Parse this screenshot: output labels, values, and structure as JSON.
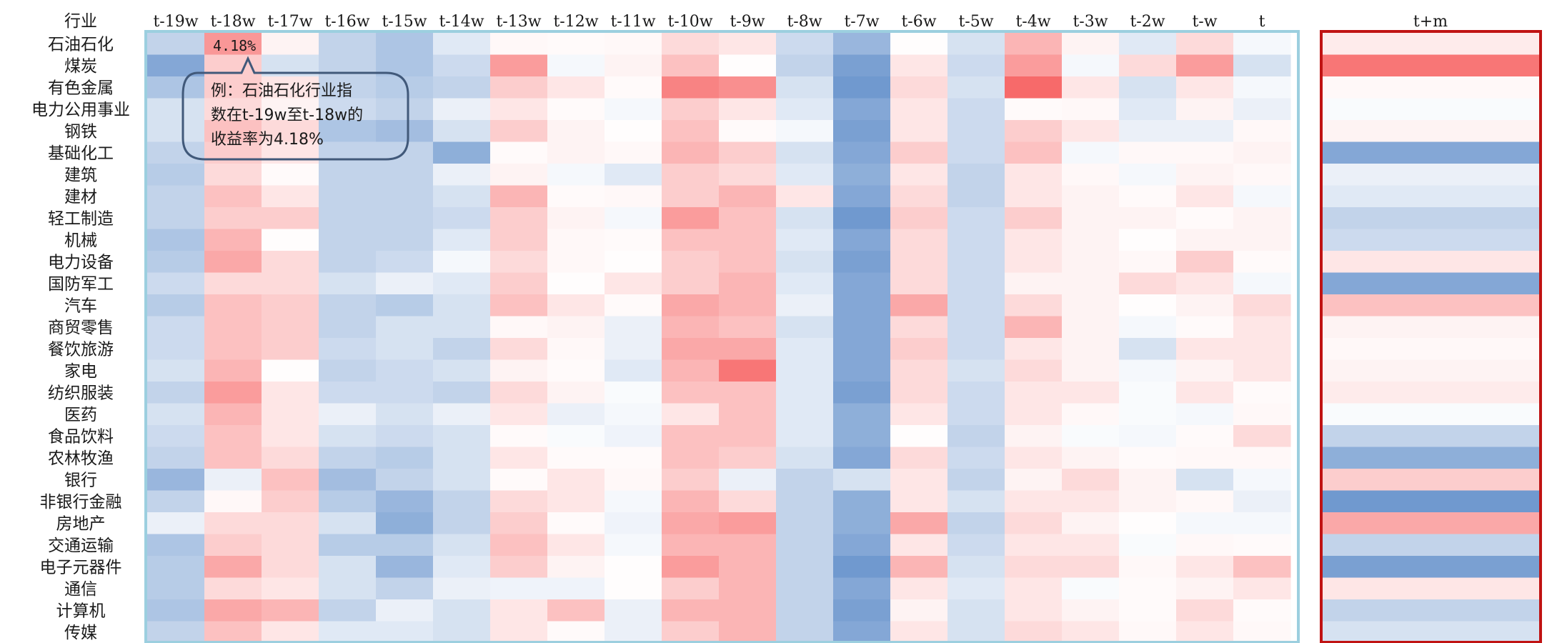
{
  "chart_data": {
    "type": "heatmap",
    "title": "",
    "row_header": "行业",
    "columns": [
      "t-19w",
      "t-18w",
      "t-17w",
      "t-16w",
      "t-15w",
      "t-14w",
      "t-13w",
      "t-12w",
      "t-11w",
      "t-10w",
      "t-9w",
      "t-8w",
      "t-7w",
      "t-6w",
      "t-5w",
      "t-4w",
      "t-3w",
      "t-2w",
      "t-w",
      "t"
    ],
    "forecast_column": "t+m",
    "rows": [
      "石油石化",
      "煤炭",
      "有色金属",
      "电力公用事业",
      "钢铁",
      "基础化工",
      "建筑",
      "建材",
      "轻工制造",
      "机械",
      "电力设备",
      "国防军工",
      "汽车",
      "商贸零售",
      "餐饮旅游",
      "家电",
      "纺织服装",
      "医药",
      "食品饮料",
      "农林牧渔",
      "银行",
      "非银行金融",
      "房地产",
      "交通运输",
      "电子元器件",
      "通信",
      "计算机",
      "传媒"
    ],
    "values": [
      [
        -3,
        4.18,
        0.5,
        -3,
        -4,
        -1.5,
        0.3,
        0.2,
        0.3,
        1.5,
        1,
        -2.5,
        -5,
        0.1,
        -2,
        3,
        0.5,
        -1.5,
        1.5,
        -0.5
      ],
      [
        -6,
        2,
        -2,
        -3,
        -4,
        -2.5,
        4,
        -0.5,
        0.5,
        2.5,
        0.1,
        -3,
        -6.5,
        1,
        -2.5,
        4,
        -0.5,
        1.5,
        4,
        -2
      ],
      [
        -4,
        2,
        1,
        -3,
        -3.5,
        -3,
        2,
        1,
        0.2,
        5,
        4.5,
        -2,
        -7,
        1.5,
        -2,
        6,
        1,
        -2,
        1,
        -0.5
      ],
      [
        -2,
        1.5,
        0.5,
        -2.5,
        -3,
        -1,
        1,
        0.2,
        -0.5,
        2,
        1,
        -1.5,
        -6,
        1,
        -2.5,
        0.2,
        0.3,
        -1.5,
        0.5,
        -1
      ],
      [
        -2,
        2.5,
        1.5,
        -4,
        -4.5,
        -2,
        2,
        0.5,
        0.1,
        2.5,
        0.2,
        -0.5,
        -6.5,
        1,
        -2.5,
        2,
        1,
        -1,
        -1,
        0.3
      ],
      [
        -3,
        2,
        1,
        -3,
        -3,
        -5.5,
        0.2,
        0.5,
        0.3,
        3,
        2,
        -2,
        -6,
        2,
        -2.5,
        2.5,
        -0.5,
        0.3,
        0.3,
        0.5
      ],
      [
        -3.5,
        1.5,
        0.2,
        -3,
        -3,
        -1,
        0.5,
        -0.5,
        -1.5,
        2,
        1.5,
        -1.5,
        -5.5,
        1,
        -3,
        1,
        0.3,
        -0.5,
        0.5,
        0.3
      ],
      [
        -3,
        2.5,
        1,
        -3,
        -3,
        -2,
        3,
        0.2,
        0.3,
        2,
        3,
        1,
        -6,
        1.5,
        -3,
        1,
        0.5,
        0.2,
        1,
        -0.5
      ],
      [
        -3,
        2,
        2,
        -3,
        -3,
        -2.5,
        2,
        0.5,
        -0.5,
        4,
        2.5,
        -2,
        -7,
        2,
        -2.5,
        2,
        0.5,
        0.5,
        0.2,
        0.5
      ],
      [
        -4,
        3,
        0.1,
        -3,
        -3,
        -1.5,
        2,
        0.3,
        0.2,
        2.5,
        2.5,
        -1.5,
        -6,
        1.5,
        -2.5,
        1,
        0.5,
        0.1,
        0.5,
        0.5
      ],
      [
        -3.5,
        3.5,
        1.5,
        -3,
        -2.5,
        -0.5,
        1.5,
        0.3,
        0.1,
        2,
        2.5,
        -2,
        -6.5,
        1.5,
        -2.5,
        1,
        0.5,
        0.3,
        2,
        0.2
      ],
      [
        -2.5,
        1.5,
        1.5,
        -2,
        -1,
        -1.5,
        2,
        0.1,
        1,
        2,
        3,
        -1.5,
        -6,
        1.5,
        -2.5,
        0.5,
        0.5,
        1.5,
        1,
        -0.5
      ],
      [
        -3.5,
        2.5,
        2,
        -3,
        -3.5,
        -2,
        2.5,
        1,
        0.2,
        3.5,
        3,
        -1,
        -6,
        3.5,
        -2.5,
        1.5,
        0.5,
        0.1,
        0.5,
        1.5
      ],
      [
        -2.5,
        2.5,
        2,
        -3,
        -2,
        -2,
        0.3,
        0.5,
        -1,
        3,
        2.5,
        -2,
        -6,
        1.5,
        -2.5,
        3,
        0.5,
        -0.5,
        0.2,
        1
      ],
      [
        -2.5,
        2.5,
        2,
        -2.5,
        -2,
        -3,
        1.5,
        0.3,
        -1,
        3.5,
        3.5,
        -1.5,
        -6,
        2,
        -2.5,
        1,
        0.5,
        -2,
        1,
        1
      ],
      [
        -2,
        3,
        0.1,
        -3,
        -2.5,
        -2,
        0.5,
        0.2,
        -1.5,
        3,
        5.5,
        -1.5,
        -6,
        1.5,
        -2,
        1.5,
        0.5,
        -0.5,
        0.5,
        1
      ],
      [
        -3,
        4,
        1,
        -2.5,
        -2.5,
        -3,
        1.5,
        0.5,
        -0.3,
        2.5,
        2.5,
        -1.5,
        -6.5,
        1.5,
        -2.5,
        1,
        1,
        -0.3,
        1,
        0.2
      ],
      [
        -2,
        3,
        1,
        -1,
        -2,
        -1,
        1,
        -1,
        -0.5,
        1,
        2.5,
        -1.5,
        -5.5,
        1,
        -2.5,
        1,
        0.3,
        -0.3,
        -0.5,
        0.3
      ],
      [
        -2.5,
        2.5,
        1,
        -2,
        -2.5,
        -2,
        0.2,
        -0.3,
        -0.8,
        2.5,
        2.5,
        -1.5,
        -5.5,
        0.1,
        -3,
        0.5,
        -0.3,
        -0.5,
        0.2,
        1.5
      ],
      [
        -3,
        2.5,
        1.5,
        -3,
        -3.5,
        -2,
        1,
        0.2,
        0.2,
        2.5,
        2,
        -2,
        -6,
        1.5,
        -2.5,
        1,
        0.5,
        0.2,
        0.3,
        0.3
      ],
      [
        -5,
        -1,
        2.5,
        -4.5,
        -3,
        -2,
        0.2,
        1,
        0.3,
        2,
        -1,
        -3,
        -2,
        1,
        -3,
        0.5,
        1.5,
        0.5,
        -2,
        -0.5
      ],
      [
        -3,
        0.3,
        2,
        -3.5,
        -5,
        -3,
        1.5,
        1,
        -0.5,
        3,
        1.5,
        -3,
        -5.5,
        1,
        -2,
        1,
        1,
        0.5,
        0.3,
        -1
      ],
      [
        -1,
        1.5,
        1.5,
        -2,
        -5.5,
        -3,
        2,
        0.2,
        -0.8,
        3.5,
        4,
        -3,
        -5.5,
        3.5,
        -3,
        1.5,
        0.5,
        0.1,
        -0.5,
        -0.5
      ],
      [
        -4,
        2,
        1.5,
        -3.5,
        -3.5,
        -2,
        2.5,
        1,
        -0.5,
        3,
        3,
        -3,
        -6,
        1,
        -2.5,
        1,
        1,
        -0.3,
        0.3,
        0.2
      ],
      [
        -3.5,
        3.5,
        1.5,
        -2,
        -5,
        -1.5,
        2,
        0.5,
        0.1,
        4,
        3,
        -3,
        -7,
        3,
        -2,
        1.5,
        1.5,
        0.3,
        1,
        2.5
      ],
      [
        -3.5,
        1.5,
        1,
        -2,
        -3,
        -1,
        -0.8,
        -0.8,
        0.1,
        2,
        3,
        -3,
        -6,
        1,
        -1.5,
        1,
        -0.3,
        0.2,
        0.5,
        1
      ],
      [
        -4,
        3.5,
        3,
        -3,
        -1,
        -2,
        1,
        2.5,
        -1,
        3,
        3,
        -3,
        -6.5,
        0.5,
        -2,
        1,
        0.5,
        0.2,
        1.5,
        0.2
      ],
      [
        -3,
        2.5,
        1,
        -1.5,
        -1.5,
        -2,
        1,
        0.2,
        -1,
        2,
        3,
        -3,
        -6,
        1,
        -2,
        1.5,
        1,
        0.3,
        1,
        0.3
      ]
    ],
    "forecast_values": [
      0.8,
      5.5,
      0.3,
      -0.3,
      0.5,
      -6,
      -1,
      -1.5,
      -3,
      -2.5,
      1,
      -6,
      2.5,
      0.5,
      0.3,
      0.5,
      0.8,
      -0.3,
      -3,
      -5.5,
      2,
      -7,
      3.5,
      -3,
      -6.5,
      1,
      -3,
      -2
    ],
    "color_scale": {
      "negative": "#5b8ac8",
      "neutral": "#ffffff",
      "positive": "#f76a6a",
      "range": [
        -8,
        6
      ]
    },
    "highlight": {
      "row": "石油石化",
      "column": "t-18w",
      "label": "4.18%"
    },
    "annotation": {
      "lines": [
        "例：石油石化行业指",
        "数在t-19w至t-18w的",
        "收益率为4.18%"
      ]
    },
    "xlabel": "",
    "ylabel": ""
  },
  "colors": {
    "main_frame": "#9ccfdf",
    "forecast_frame": "#c01313",
    "callout_border": "#41597a"
  }
}
